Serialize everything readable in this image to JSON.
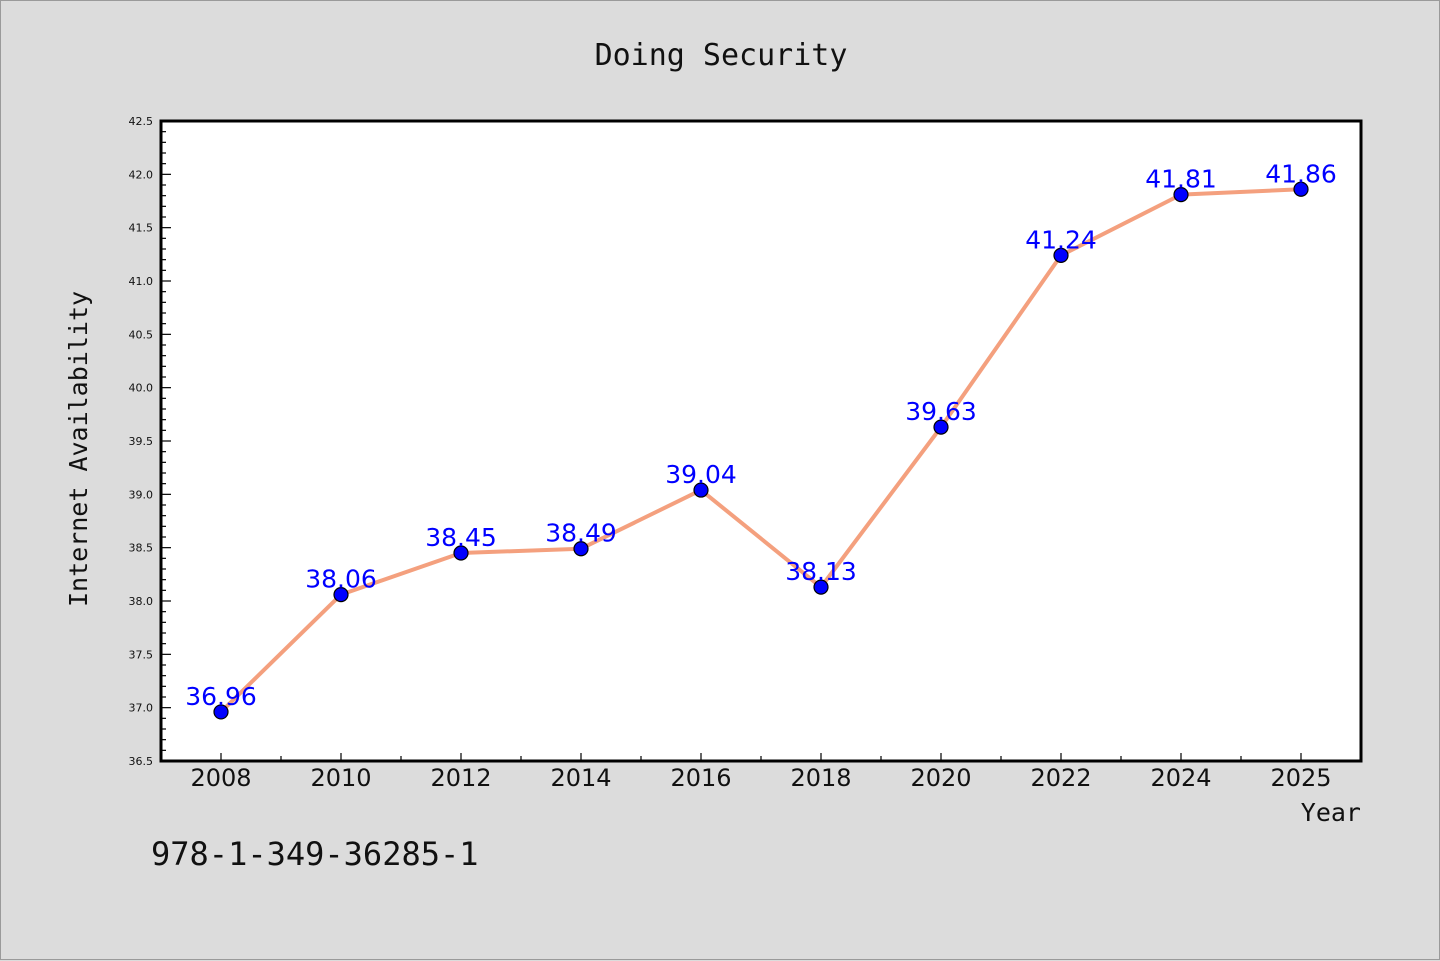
{
  "chart_data": {
    "type": "line",
    "title": "Doing Security",
    "xlabel": "Year",
    "ylabel": "Internet Availability",
    "categories": [
      "2008",
      "2010",
      "2012",
      "2014",
      "2016",
      "2018",
      "2020",
      "2022",
      "2024",
      "2025"
    ],
    "series": [
      {
        "values": [
          36.96,
          38.06,
          38.45,
          38.49,
          39.04,
          38.13,
          39.63,
          41.24,
          41.81,
          41.86
        ],
        "data_labels": [
          "36.96",
          "38.06",
          "38.45",
          "38.49",
          "39.04",
          "38.13",
          "39.63",
          "41.24",
          "41.81",
          "41.86"
        ]
      }
    ],
    "ylim": [
      36.5,
      42.5
    ],
    "yticks": [
      "36.5",
      "37.0",
      "37.5",
      "38.0",
      "38.5",
      "39.0",
      "39.5",
      "40.0",
      "40.5",
      "41.0",
      "41.5",
      "42.0",
      "42.5"
    ],
    "grid": false,
    "colors": {
      "line": "#f4a07e",
      "marker": "#0000ff",
      "label": "#0000ff",
      "background": "#dcdcdc",
      "plot_area": "#ffffff"
    }
  },
  "footer_text": "978-1-349-36285-1"
}
